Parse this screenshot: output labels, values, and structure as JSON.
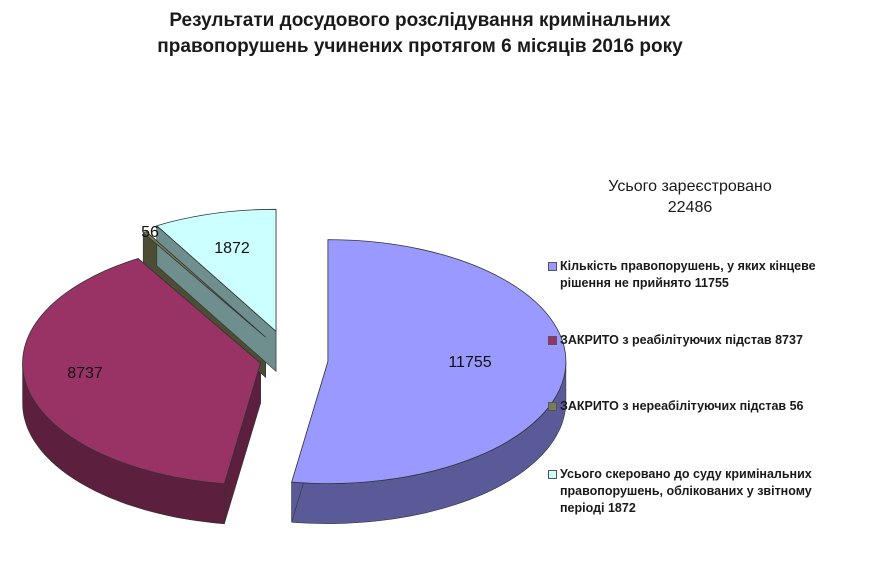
{
  "chart_data": {
    "type": "pie",
    "title_lines": [
      "Результати досудового розслідування кримінальних",
      "правопорушень учинених протягом 6 місяців 2016 року"
    ],
    "total_lines": [
      "Усього зареєстровано",
      "22486"
    ],
    "slices": [
      {
        "label": "Кількість правопорушень, у яких кінцеве рішення не прийнято 11755",
        "value": 11755,
        "value_label": "11755",
        "color": "#9999ff",
        "side_color": "#5a5a99"
      },
      {
        "label": "ЗАКРИТО з реабілітуючих підстав 8737",
        "value": 8737,
        "value_label": "8737",
        "color": "#993366",
        "side_color": "#5c1f3d"
      },
      {
        "label": "ЗАКРИТО з нереабілітуючих підстав 56",
        "value": 56,
        "value_label": "56",
        "color": "#7a7a56",
        "side_color": "#4d4d36"
      },
      {
        "label": "Усього скеровано до суду кримінальних правопорушень, облікованих у звітному періоді 1872",
        "value": 1872,
        "value_label": "1872",
        "color": "#ccffff",
        "side_color": "#6f8f8f"
      }
    ]
  }
}
